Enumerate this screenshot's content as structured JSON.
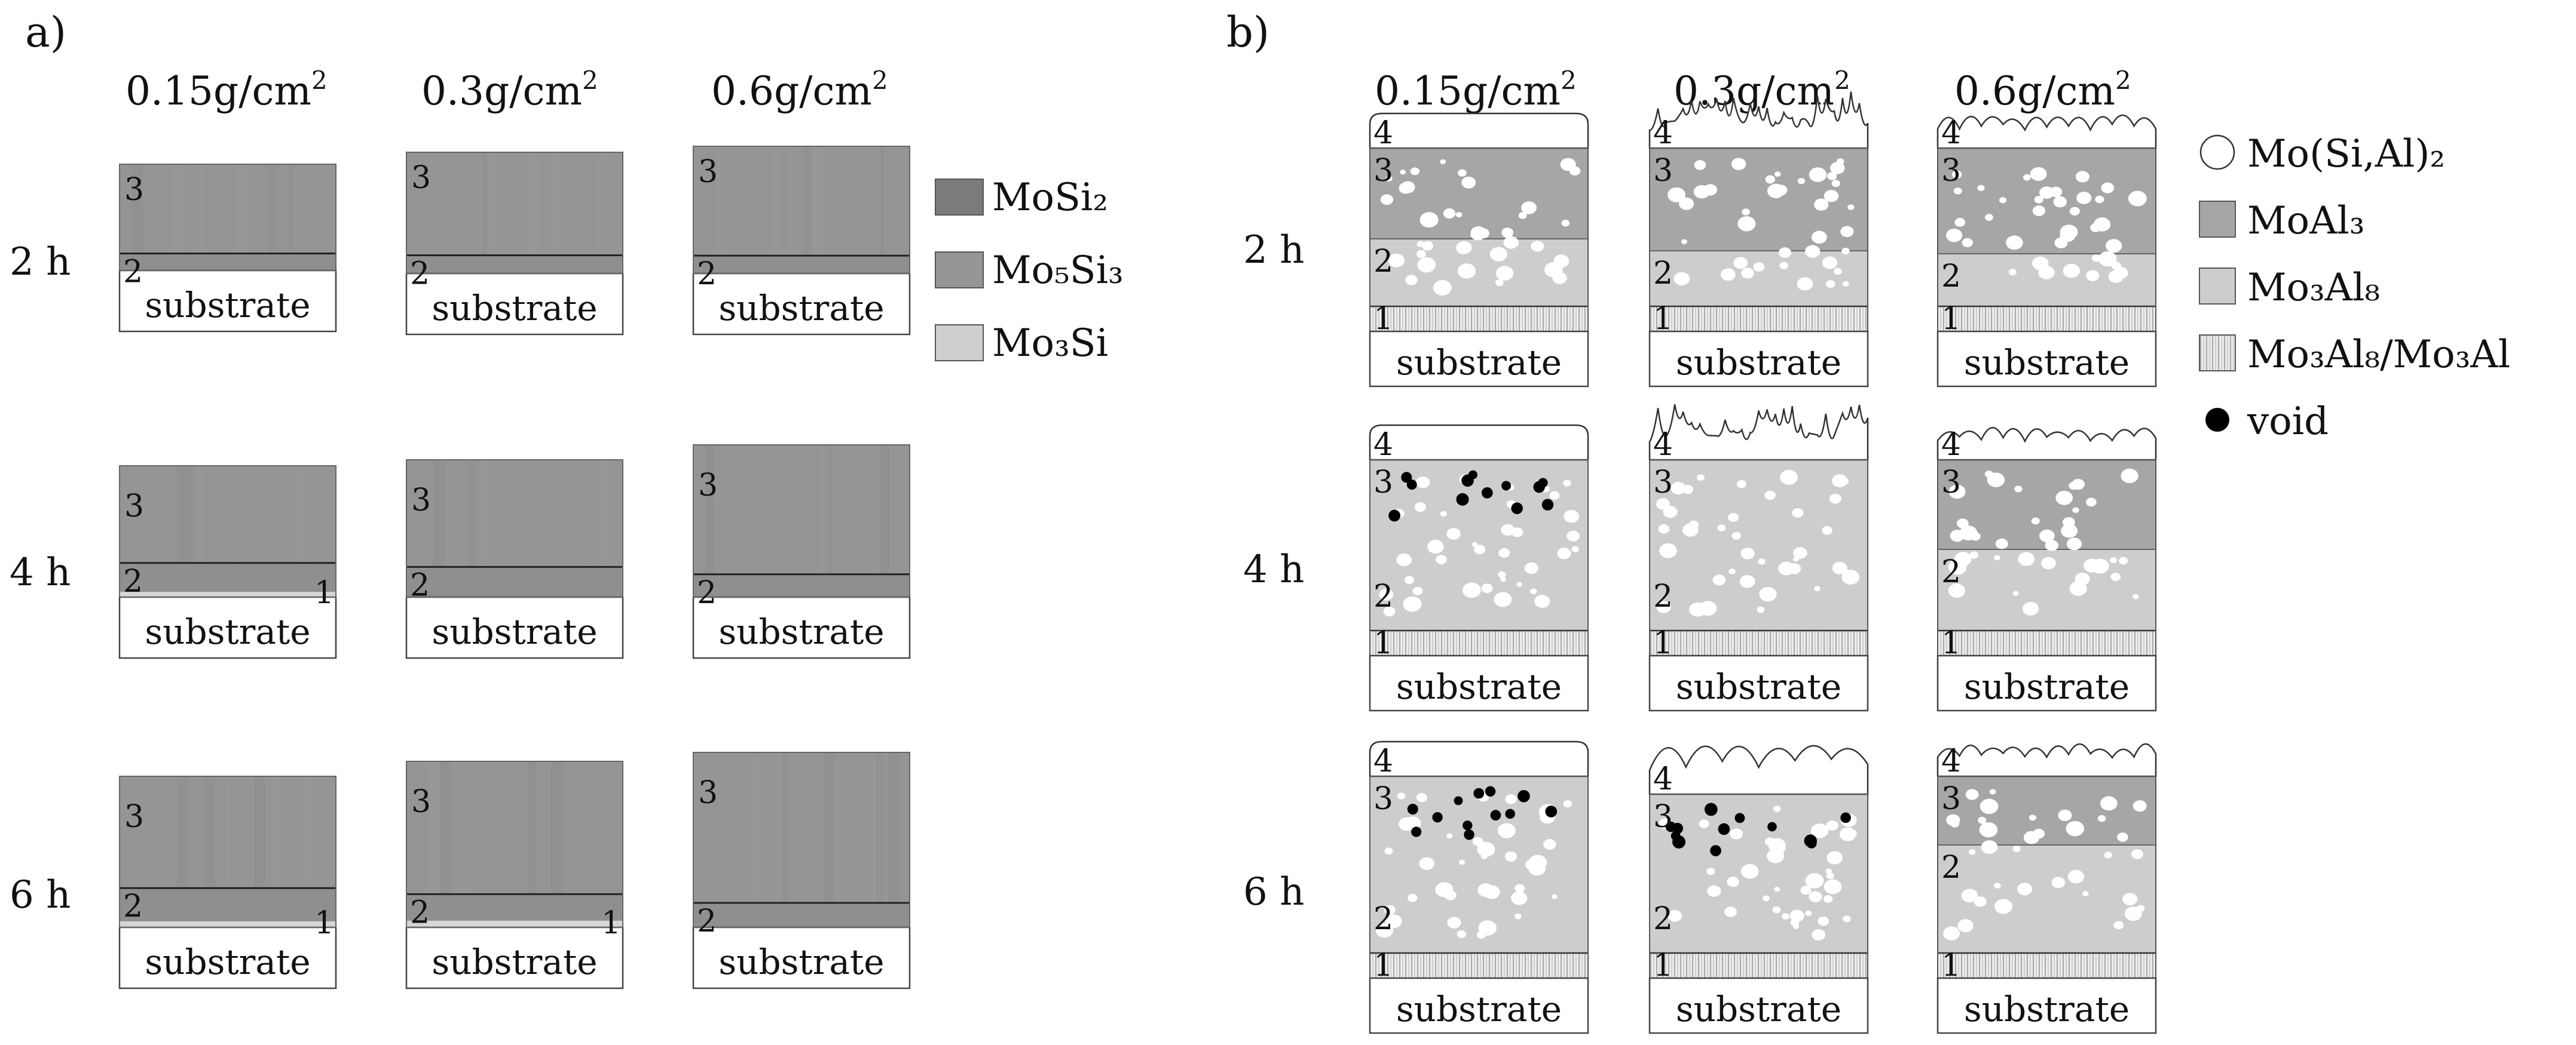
{
  "panel_a": {
    "label": "a)",
    "columns": [
      "0.15g/cm",
      "0.3g/cm",
      "0.6g/cm"
    ],
    "column_unit_superscript": "2",
    "rows": [
      "2 h",
      "4 h",
      "6 h"
    ],
    "substrate_label": "substrate",
    "legend": [
      {
        "text": "MoSi₂",
        "color": "#7b7b7b"
      },
      {
        "text": "Mo₅Si₃",
        "color": "#969696"
      },
      {
        "text": "Mo₃Si",
        "color": "#cfcfcf"
      }
    ],
    "cells": [
      [
        {
          "layer_labels": [
            "3",
            "2"
          ],
          "layer_fractions": [
            0.84,
            0.11
          ],
          "show_layer1": false
        },
        {
          "layer_labels": [
            "3",
            "2"
          ],
          "layer_fractions": [
            0.85,
            0.1
          ],
          "show_layer1": false
        },
        {
          "layer_labels": [
            "3",
            "2"
          ],
          "layer_fractions": [
            0.86,
            0.09
          ],
          "show_layer1": false
        }
      ],
      [
        {
          "layer_labels": [
            "3",
            "2",
            "1"
          ],
          "layer_fractions": [
            0.74,
            0.15,
            0.04
          ],
          "show_layer1": true
        },
        {
          "layer_labels": [
            "3",
            "2"
          ],
          "layer_fractions": [
            0.78,
            0.18
          ],
          "show_layer1": false
        },
        {
          "layer_labels": [
            "3",
            "2"
          ],
          "layer_fractions": [
            0.85,
            0.08
          ],
          "show_layer1": false
        }
      ],
      [
        {
          "layer_labels": [
            "3",
            "2",
            "1"
          ],
          "layer_fractions": [
            0.74,
            0.17,
            0.04
          ],
          "show_layer1": true
        },
        {
          "layer_labels": [
            "3",
            "2",
            "1"
          ],
          "layer_fractions": [
            0.8,
            0.15,
            0.04
          ],
          "show_layer1": true
        },
        {
          "layer_labels": [
            "3",
            "2"
          ],
          "layer_fractions": [
            0.86,
            0.1
          ],
          "show_layer1": false
        }
      ]
    ]
  },
  "panel_b": {
    "label": "b)",
    "columns": [
      "0.15g/cm",
      "0.3g/cm",
      "0.6g/cm"
    ],
    "column_unit_superscript": "2",
    "rows": [
      "2 h",
      "4 h",
      "6 h"
    ],
    "substrate_label": "substrate",
    "legend": [
      {
        "text": "Mo(Si,Al)₂",
        "symbol": "open-circle",
        "color": "#ffffff"
      },
      {
        "text": "MoAl₃",
        "symbol": "square",
        "color": "#a6a6a6"
      },
      {
        "text": "Mo₃Al₈",
        "symbol": "square",
        "color": "#cdcdcd"
      },
      {
        "text": "Mo₃Al₈/Mo₃Al",
        "symbol": "striped-square",
        "color": "#e2e2e2"
      },
      {
        "text": "void",
        "symbol": "filled-circle",
        "color": "#000000"
      }
    ],
    "cells": [
      [
        {
          "top": "smooth",
          "layer_labels": [
            "4",
            "3",
            "2",
            "1"
          ],
          "layer3_color": "#a6a6a6",
          "layer2_color": "#cdcdcd",
          "voids": false
        },
        {
          "top": "spiky",
          "layer_labels": [
            "4",
            "3",
            "2",
            "1"
          ],
          "layer3_color": "#a6a6a6",
          "layer2_color": "#cdcdcd",
          "voids": false
        },
        {
          "top": "wavy",
          "layer_labels": [
            "4",
            "3",
            "2",
            "1"
          ],
          "layer3_color": "#a6a6a6",
          "layer2_color": "#cdcdcd",
          "voids": false
        }
      ],
      [
        {
          "top": "smooth",
          "layer_labels": [
            "4",
            "3",
            "2",
            "1"
          ],
          "layer3_color": "#cdcdcd",
          "layer2_color": "#cdcdcd",
          "voids": true
        },
        {
          "top": "spiky",
          "layer_labels": [
            "4",
            "3",
            "2",
            "1"
          ],
          "layer3_color": "#cdcdcd",
          "layer2_color": "#cdcdcd",
          "voids": false
        },
        {
          "top": "wavy",
          "layer_labels": [
            "4",
            "3",
            "2",
            "1"
          ],
          "layer3_color": "#a6a6a6",
          "layer2_color": "#cdcdcd",
          "voids": false
        }
      ],
      [
        {
          "top": "smooth",
          "layer_labels": [
            "4",
            "3",
            "2",
            "1"
          ],
          "layer3_color": "#cdcdcd",
          "layer2_color": "#cdcdcd",
          "voids": true
        },
        {
          "top": "bumpy",
          "layer_labels": [
            "4",
            "3",
            "2",
            "1"
          ],
          "layer3_color": "#cdcdcd",
          "layer2_color": "#cdcdcd",
          "voids": true
        },
        {
          "top": "wavy",
          "layer_labels": [
            "4",
            "3",
            "2",
            "1"
          ],
          "layer3_color": "#a6a6a6",
          "layer2_color": "#cdcdcd",
          "voids": false
        }
      ]
    ]
  }
}
